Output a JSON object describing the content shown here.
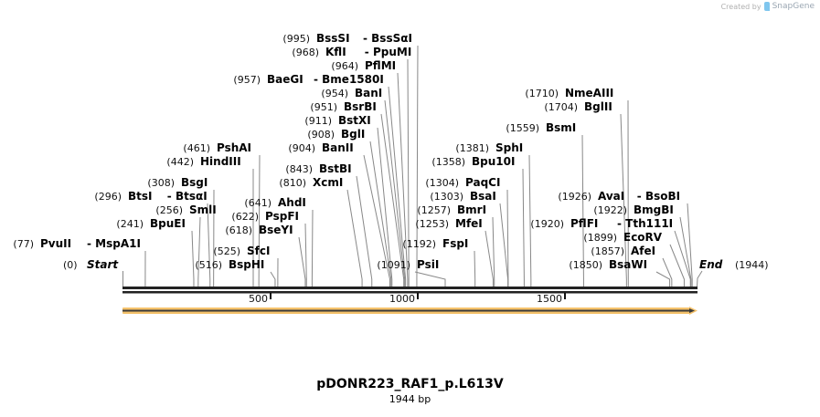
{
  "credit": {
    "prefix": "Created by",
    "brand": "SnapGene"
  },
  "map": {
    "name": "pDONR223_RAF1_p.L613V",
    "length_label": "1944 bp",
    "length_bp": 1944,
    "start_label": "Start",
    "start_pos": "(0)",
    "end_label": "End",
    "end_pos": "(1944)",
    "ticks": [
      "500",
      "1000",
      "1500"
    ],
    "feature_color": "#f5c26b",
    "feature_arrow_color": "#3a3a3a"
  },
  "sites": [
    {
      "pos": "(995)",
      "name": "BssSI",
      "alt": "BssSαI",
      "bp": 995
    },
    {
      "pos": "(968)",
      "name": "KflI",
      "alt": "PpuMI",
      "bp": 968
    },
    {
      "pos": "(964)",
      "name": "PflMI",
      "alt": "",
      "bp": 964
    },
    {
      "pos": "(957)",
      "name": "BaeGI",
      "alt": "Bme1580I",
      "bp": 957
    },
    {
      "pos": "(954)",
      "name": "BanI",
      "alt": "",
      "bp": 954
    },
    {
      "pos": "(951)",
      "name": "BsrBI",
      "alt": "",
      "bp": 951
    },
    {
      "pos": "(911)",
      "name": "BstXI",
      "alt": "",
      "bp": 911
    },
    {
      "pos": "(908)",
      "name": "BglI",
      "alt": "",
      "bp": 908
    },
    {
      "pos": "(904)",
      "name": "BanII",
      "alt": "",
      "bp": 904
    },
    {
      "pos": "(843)",
      "name": "BstBI",
      "alt": "",
      "bp": 843
    },
    {
      "pos": "(810)",
      "name": "XcmI",
      "alt": "",
      "bp": 810
    },
    {
      "pos": "(461)",
      "name": "PshAI",
      "alt": "",
      "bp": 461
    },
    {
      "pos": "(442)",
      "name": "HindIII",
      "alt": "",
      "bp": 442
    },
    {
      "pos": "(308)",
      "name": "BsgI",
      "alt": "",
      "bp": 308
    },
    {
      "pos": "(296)",
      "name": "BtsI",
      "alt": "BtsαI",
      "bp": 296
    },
    {
      "pos": "(256)",
      "name": "SmlI",
      "alt": "",
      "bp": 256
    },
    {
      "pos": "(241)",
      "name": "BpuEI",
      "alt": "",
      "bp": 241
    },
    {
      "pos": "(77)",
      "name": "PvuII",
      "alt": "MspA1I",
      "bp": 77
    },
    {
      "pos": "(641)",
      "name": "AhdI",
      "alt": "",
      "bp": 641
    },
    {
      "pos": "(622)",
      "name": "PspFI",
      "alt": "",
      "bp": 622
    },
    {
      "pos": "(618)",
      "name": "BseYI",
      "alt": "",
      "bp": 618
    },
    {
      "pos": "(525)",
      "name": "SfcI",
      "alt": "",
      "bp": 525
    },
    {
      "pos": "(516)",
      "name": "BspHI",
      "alt": "",
      "bp": 516
    },
    {
      "pos": "(1091)",
      "name": "PsiI",
      "alt": "",
      "bp": 1091
    },
    {
      "pos": "(1192)",
      "name": "FspI",
      "alt": "",
      "bp": 1192
    },
    {
      "pos": "(1381)",
      "name": "SphI",
      "alt": "",
      "bp": 1381
    },
    {
      "pos": "(1358)",
      "name": "Bpu10I",
      "alt": "",
      "bp": 1358
    },
    {
      "pos": "(1304)",
      "name": "PaqCI",
      "alt": "",
      "bp": 1304
    },
    {
      "pos": "(1303)",
      "name": "BsaI",
      "alt": "",
      "bp": 1303
    },
    {
      "pos": "(1257)",
      "name": "BmrI",
      "alt": "",
      "bp": 1257
    },
    {
      "pos": "(1253)",
      "name": "MfeI",
      "alt": "",
      "bp": 1253
    },
    {
      "pos": "(1710)",
      "name": "NmeAIII",
      "alt": "",
      "bp": 1710
    },
    {
      "pos": "(1704)",
      "name": "BglII",
      "alt": "",
      "bp": 1704
    },
    {
      "pos": "(1559)",
      "name": "BsmI",
      "alt": "",
      "bp": 1559
    },
    {
      "pos": "(1926)",
      "name": "AvaI",
      "alt": "BsoBI",
      "bp": 1926
    },
    {
      "pos": "(1922)",
      "name": "BmgBI",
      "alt": "",
      "bp": 1922
    },
    {
      "pos": "(1920)",
      "name": "PflFI",
      "alt": "Tth111I",
      "bp": 1920
    },
    {
      "pos": "(1899)",
      "name": "EcoRV",
      "alt": "",
      "bp": 1899
    },
    {
      "pos": "(1857)",
      "name": "AfeI",
      "alt": "",
      "bp": 1857
    },
    {
      "pos": "(1850)",
      "name": "BsaWI",
      "alt": "",
      "bp": 1850
    }
  ]
}
